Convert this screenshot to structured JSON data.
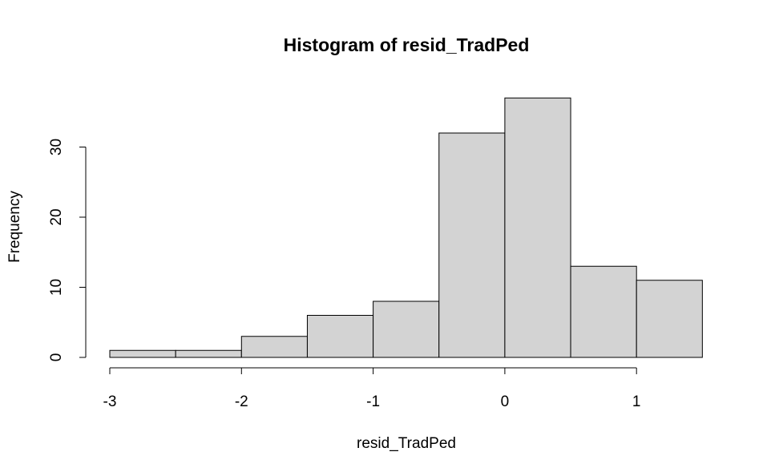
{
  "chart_data": {
    "type": "bar",
    "title": "Histogram of resid_TradPed",
    "xlabel": "resid_TradPed",
    "ylabel": "Frequency",
    "bins": [
      {
        "from": -3.0,
        "to": -2.5,
        "count": 1
      },
      {
        "from": -2.5,
        "to": -2.0,
        "count": 1
      },
      {
        "from": -2.0,
        "to": -1.5,
        "count": 3
      },
      {
        "from": -1.5,
        "to": -1.0,
        "count": 6
      },
      {
        "from": -1.0,
        "to": -0.5,
        "count": 8
      },
      {
        "from": -0.5,
        "to": 0.0,
        "count": 32
      },
      {
        "from": 0.0,
        "to": 0.5,
        "count": 37
      },
      {
        "from": 0.5,
        "to": 1.0,
        "count": 13
      },
      {
        "from": 1.0,
        "to": 1.5,
        "count": 11
      }
    ],
    "x_ticks": [
      -3,
      -2,
      -1,
      0,
      1
    ],
    "x_tick_labels": [
      "-3",
      "-2",
      "-1",
      "0",
      "1"
    ],
    "y_ticks": [
      0,
      10,
      20,
      30
    ],
    "y_tick_labels": [
      "0",
      "10",
      "20",
      "30"
    ],
    "xlim": [
      -3,
      1.5
    ],
    "ylim": [
      0,
      37
    ],
    "grid": false,
    "legend": "none",
    "colors": {
      "bar_fill": "#d3d3d3",
      "bar_stroke": "#000000"
    }
  }
}
